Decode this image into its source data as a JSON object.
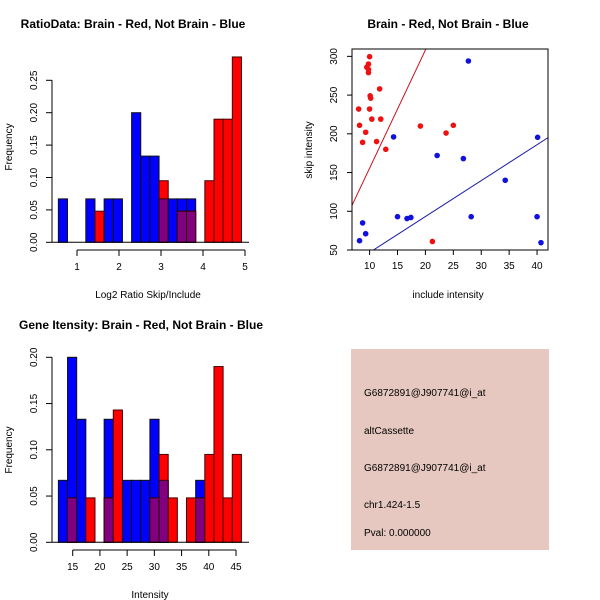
{
  "chart_data": [
    {
      "type": "histogram",
      "title": "RatioData: Brain - Red, Not Brain - Blue",
      "xlabel": "Log2 Ratio Skip/Include",
      "ylabel": "Frequency",
      "bin_start": 0.556,
      "bin_width": 0.218,
      "xticks": [
        "1",
        "2",
        "3",
        "4",
        "5"
      ],
      "xtick_values": [
        1,
        2,
        3,
        4,
        5
      ],
      "yticks": [
        "0.00",
        "0.05",
        "0.10",
        "0.15",
        "0.20",
        "0.25"
      ],
      "ytick_values": [
        0,
        0.05,
        0.1,
        0.15,
        0.2,
        0.25
      ],
      "series": [
        {
          "name": "Not Brain",
          "color": "#0000ff",
          "values": [
            0.067,
            0,
            0,
            0.067,
            0,
            0.067,
            0.067,
            0,
            0.2,
            0.133,
            0.133,
            0.067,
            0.067,
            0.067,
            0.067,
            0,
            0,
            0,
            0,
            0
          ]
        },
        {
          "name": "Brain",
          "color": "#ff0000",
          "values": [
            0,
            0,
            0,
            0,
            0.048,
            0,
            0,
            0,
            0,
            0,
            0,
            0.095,
            0,
            0.048,
            0.048,
            0,
            0.095,
            0.19,
            0.19,
            0.286
          ]
        }
      ],
      "overlap_color": "#800080"
    },
    {
      "type": "scatter",
      "title": "Brain - Red, Not Brain - Blue",
      "xlabel": "include intensity",
      "ylabel": "skip intensity",
      "xlim": [
        6.85,
        41.96
      ],
      "ylim": [
        50,
        309.5
      ],
      "xticks": [
        "10",
        "15",
        "20",
        "25",
        "30",
        "35",
        "40"
      ],
      "xtick_values": [
        10,
        15,
        20,
        25,
        30,
        35,
        40
      ],
      "yticks": [
        "50",
        "100",
        "150",
        "200",
        "250",
        "300"
      ],
      "ytick_values": [
        50,
        100,
        150,
        200,
        250,
        300
      ],
      "series": [
        {
          "name": "Brain",
          "color": "#ee1111",
          "line": {
            "slope": 15.26,
            "intercept": 3,
            "color": "#cc1122"
          },
          "x": [
            8.04,
            8.2,
            8.75,
            9.3,
            9.5,
            9.8,
            9.8,
            9.8,
            10,
            10,
            10.1,
            10.2,
            10.4,
            11.25,
            11.8,
            12,
            12.9,
            19.1,
            23.7,
            25,
            21.25
          ],
          "y": [
            232,
            211,
            189,
            202,
            286,
            290,
            283,
            279,
            299.6,
            232,
            249,
            246,
            219,
            190,
            258,
            219,
            180,
            210,
            201,
            211,
            61
          ]
        },
        {
          "name": "Not Brain",
          "color": "#1111dd",
          "line": {
            "slope": 4.64,
            "intercept": 0.4,
            "color": "#2222aa"
          },
          "x": [
            8.2,
            8.75,
            9.3,
            14.3,
            15,
            16.7,
            17.4,
            22.1,
            26.8,
            27.7,
            28.2,
            34.3,
            40,
            40.1,
            40.7
          ],
          "y": [
            62,
            85,
            71,
            196,
            93,
            90.6,
            92,
            172,
            168,
            294,
            93,
            140,
            93,
            195.5,
            59.5
          ]
        }
      ]
    },
    {
      "type": "histogram",
      "title": "Gene Itensity: Brain - Red, Not Brain - Blue",
      "xlabel": "Intensity",
      "ylabel": "Frequency",
      "bin_start": 12.37,
      "bin_width": 1.681,
      "xticks": [
        "15",
        "20",
        "25",
        "30",
        "35",
        "40",
        "45"
      ],
      "xtick_values": [
        15,
        20,
        25,
        30,
        35,
        40,
        45
      ],
      "yticks": [
        "0.00",
        "0.05",
        "0.10",
        "0.15",
        "0.20"
      ],
      "ytick_values": [
        0,
        0.05,
        0.1,
        0.15,
        0.2
      ],
      "series": [
        {
          "name": "Not Brain",
          "color": "#0000ff",
          "values": [
            0.067,
            0.2,
            0.133,
            0,
            0,
            0.133,
            0,
            0.067,
            0.067,
            0.067,
            0.133,
            0.067,
            0,
            0,
            0,
            0.067,
            0,
            0,
            0,
            0
          ]
        },
        {
          "name": "Brain",
          "color": "#ff0000",
          "values": [
            0,
            0.048,
            0,
            0.048,
            0,
            0.048,
            0.143,
            0,
            0,
            0,
            0.048,
            0.095,
            0.048,
            0,
            0.048,
            0.048,
            0.095,
            0.19,
            0.048,
            0.095
          ]
        }
      ],
      "overlap_color": "#800080"
    }
  ],
  "info_panel": {
    "background": "#e6c8c0",
    "lines": [
      "G6872891@J907741@i_at",
      "altCassette",
      "G6872891@J907741@i_at",
      "chr1.424-1.5"
    ],
    "pval": "Pval: 0.000000",
    "pval_color": "#aa0000"
  }
}
